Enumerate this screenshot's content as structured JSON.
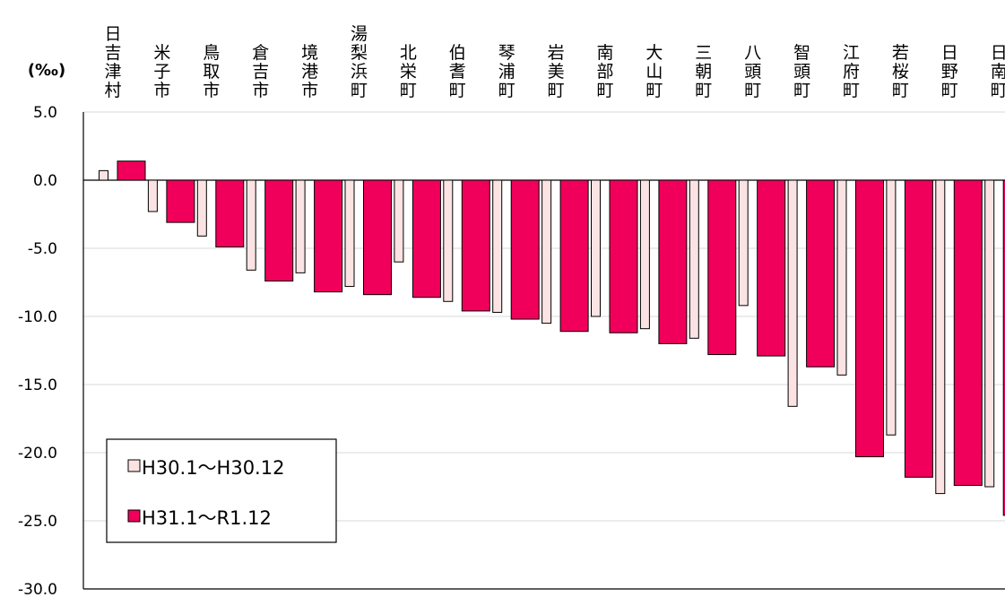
{
  "chart_data": {
    "type": "bar",
    "unit_label": "(‰)",
    "categories": [
      "日吉津村",
      "米子市",
      "鳥取市",
      "倉吉市",
      "境港市",
      "湯梨浜町",
      "北栄町",
      "伯耆町",
      "琴浦町",
      "岩美町",
      "南部町",
      "大山町",
      "三朝町",
      "八頭町",
      "智頭町",
      "江府町",
      "若桜町",
      "日野町",
      "日南町"
    ],
    "series": [
      {
        "name": "H30.1～H30.12",
        "color": "#fbe3e3",
        "stroke": "#000000",
        "values": [
          0.7,
          -2.3,
          -4.1,
          -6.6,
          -6.8,
          -7.8,
          -6.0,
          -8.9,
          -9.7,
          -10.5,
          -10.0,
          -10.9,
          -11.6,
          -9.2,
          -16.6,
          -14.3,
          -18.7,
          -23.0,
          -22.5
        ]
      },
      {
        "name": "H31.1～R1.12",
        "color": "#f0005a",
        "stroke": "#000000",
        "values": [
          1.4,
          -3.1,
          -4.9,
          -7.4,
          -8.2,
          -8.4,
          -8.6,
          -9.6,
          -10.2,
          -11.1,
          -11.2,
          -12.0,
          -12.8,
          -12.9,
          -13.7,
          -20.3,
          -21.8,
          -22.4,
          -24.6
        ]
      }
    ],
    "y_ticks": [
      "5.0",
      "0.0",
      "-5.0",
      "-10.0",
      "-15.0",
      "-20.0",
      "-25.0",
      "-30.0"
    ],
    "ylim": [
      -30,
      5
    ],
    "grid": true,
    "legend_position": "bottom-left"
  }
}
